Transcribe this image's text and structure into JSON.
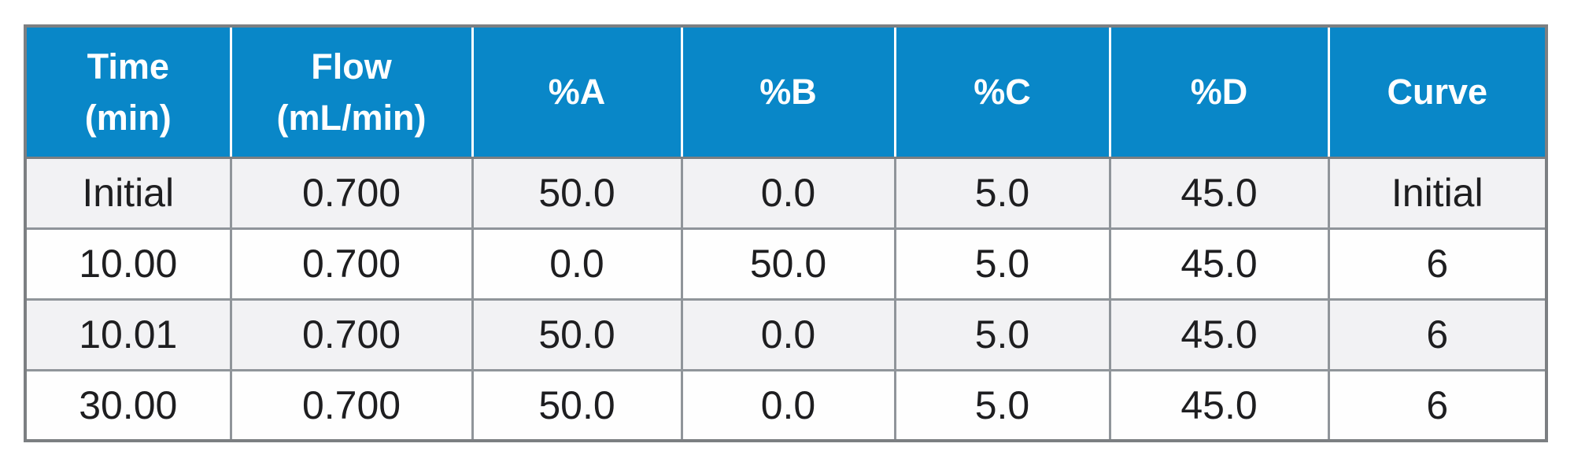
{
  "colors": {
    "header_bg": "#0987c8",
    "header_text": "#ffffff",
    "row_bg": "#fefefe",
    "row_alt_bg": "#f2f2f4",
    "cell_text": "#1e1e20",
    "outer_border": "#7c7f82",
    "inner_border": "#90959a",
    "header_divider": "#ffffff"
  },
  "table": {
    "columns": [
      {
        "label": "Time\n(min)"
      },
      {
        "label": "Flow\n(mL/min)"
      },
      {
        "label": "%A"
      },
      {
        "label": "%B"
      },
      {
        "label": "%C"
      },
      {
        "label": "%D"
      },
      {
        "label": "Curve"
      }
    ],
    "rows": [
      {
        "cells": [
          "Initial",
          "0.700",
          "50.0",
          "0.0",
          "5.0",
          "45.0",
          "Initial"
        ]
      },
      {
        "cells": [
          "10.00",
          "0.700",
          "0.0",
          "50.0",
          "5.0",
          "45.0",
          "6"
        ]
      },
      {
        "cells": [
          "10.01",
          "0.700",
          "50.0",
          "0.0",
          "5.0",
          "45.0",
          "6"
        ]
      },
      {
        "cells": [
          "30.00",
          "0.700",
          "50.0",
          "0.0",
          "5.0",
          "45.0",
          "6"
        ]
      }
    ]
  },
  "chart_data": {
    "type": "table",
    "columns": [
      "Time (min)",
      "Flow (mL/min)",
      "%A",
      "%B",
      "%C",
      "%D",
      "Curve"
    ],
    "rows": [
      [
        "Initial",
        "0.700",
        "50.0",
        "0.0",
        "5.0",
        "45.0",
        "Initial"
      ],
      [
        "10.00",
        "0.700",
        "0.0",
        "50.0",
        "5.0",
        "45.0",
        "6"
      ],
      [
        "10.01",
        "0.700",
        "50.0",
        "0.0",
        "5.0",
        "45.0",
        "6"
      ],
      [
        "30.00",
        "0.700",
        "50.0",
        "0.0",
        "5.0",
        "45.0",
        "6"
      ]
    ]
  }
}
